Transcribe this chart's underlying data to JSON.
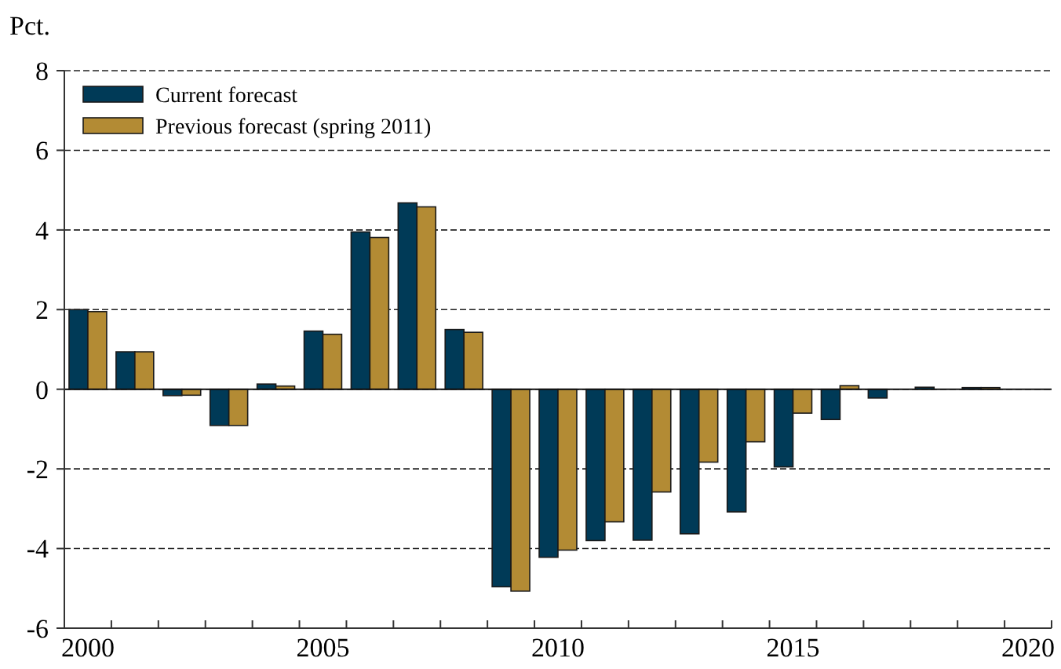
{
  "chart_data": {
    "type": "bar",
    "ylabel": "Pct.",
    "categories": [
      "2000",
      null,
      null,
      null,
      null,
      "2005",
      null,
      null,
      null,
      null,
      "2010",
      null,
      null,
      null,
      null,
      "2015",
      null,
      null,
      null,
      null,
      "2020"
    ],
    "series": [
      {
        "name": "Current forecast",
        "color": "#003a57",
        "values": [
          2.0,
          0.94,
          -0.16,
          -0.91,
          0.13,
          1.46,
          3.95,
          4.68,
          1.5,
          -4.96,
          -4.22,
          -3.8,
          -3.79,
          -3.63,
          -3.08,
          -1.95,
          -0.76,
          -0.22,
          0.05,
          0.04,
          0
        ]
      },
      {
        "name": "Previous forecast (spring 2011)",
        "color": "#b38b34",
        "values": [
          1.95,
          0.94,
          -0.15,
          -0.91,
          0.08,
          1.38,
          3.81,
          4.58,
          1.43,
          -5.07,
          -4.04,
          -3.33,
          -2.58,
          -1.83,
          -1.32,
          -0.6,
          0.09,
          null,
          null,
          0.04,
          0
        ]
      }
    ],
    "ylim": [
      -6,
      8
    ],
    "yticks": [
      -6,
      -4,
      -2,
      0,
      2,
      4,
      6,
      8
    ],
    "grid": "y",
    "legend": "top left"
  }
}
